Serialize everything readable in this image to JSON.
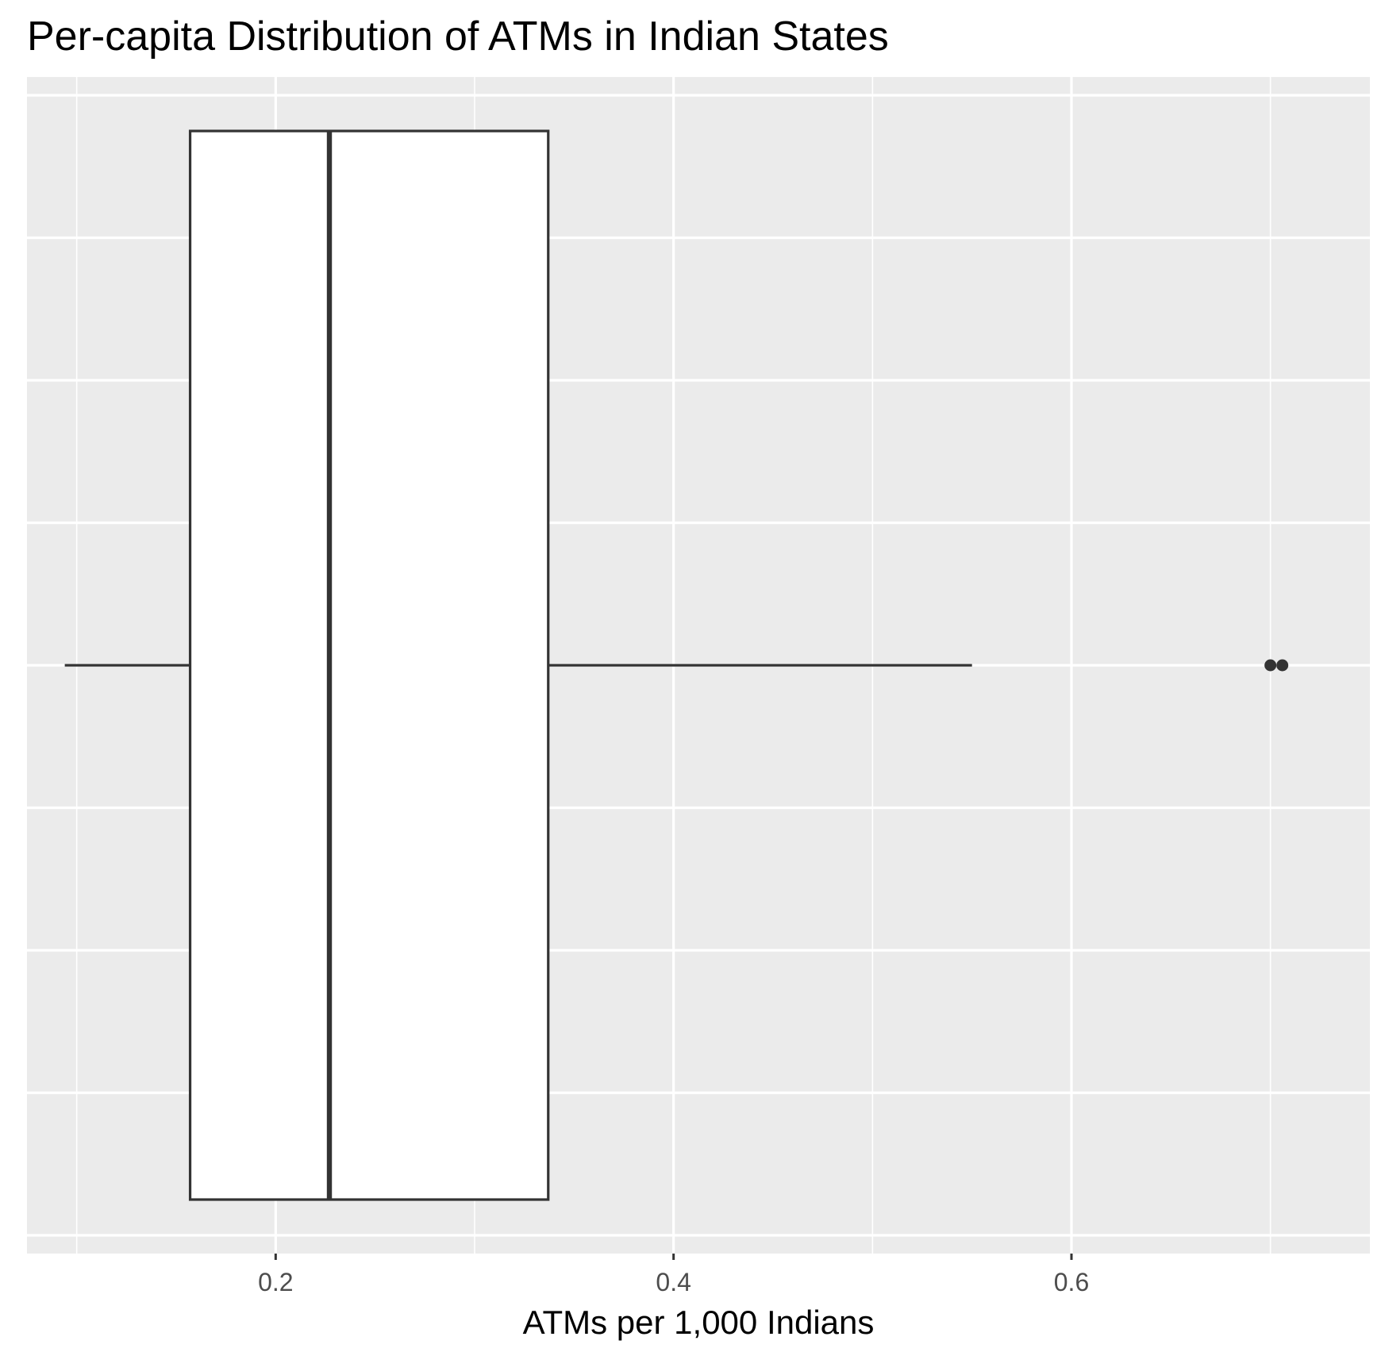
{
  "chart_data": {
    "type": "boxplot",
    "title": "Per-capita Distribution of ATMs in Indian States",
    "xlabel": "ATMs per 1,000 Indians",
    "ylabel": "",
    "orientation": "horizontal",
    "xlim": [
      0.075,
      0.75
    ],
    "x_ticks": [
      0.2,
      0.4,
      0.6
    ],
    "x_tick_labels": [
      "0.2",
      "0.4",
      "0.6"
    ],
    "x_minor_ticks": [
      0.1,
      0.3,
      0.5,
      0.7
    ],
    "grid": true,
    "legend": "none",
    "box": {
      "lower_whisker": 0.094,
      "q1": 0.157,
      "median": 0.227,
      "q3": 0.337,
      "upper_whisker": 0.55
    },
    "outliers": [
      0.7,
      0.706
    ],
    "colors": {
      "panel_background": "#ebebeb",
      "grid": "#ffffff",
      "box_fill": "#ffffff",
      "box_stroke": "#333333",
      "outlier": "#333333"
    }
  }
}
